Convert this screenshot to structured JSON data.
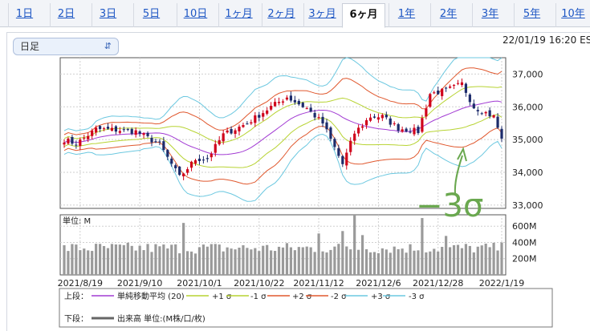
{
  "tabs": [
    {
      "label": "1日",
      "active": false
    },
    {
      "label": "2日",
      "active": false
    },
    {
      "label": "3日",
      "active": false
    },
    {
      "label": "5日",
      "active": false
    },
    {
      "label": "10日",
      "active": false
    },
    {
      "label": "1ヶ月",
      "active": false
    },
    {
      "label": "2ヶ月",
      "active": false
    },
    {
      "label": "3ヶ月",
      "active": false
    },
    {
      "label": "6ヶ月",
      "active": true
    },
    {
      "label": "1年",
      "active": false
    },
    {
      "label": "2年",
      "active": false
    },
    {
      "label": "3年",
      "active": false
    },
    {
      "label": "5年",
      "active": false
    },
    {
      "label": "10年",
      "active": false
    }
  ],
  "select": {
    "value": "日足",
    "icon": "updown-chevron-icon"
  },
  "timestamp": "22/01/19 16:20 ES",
  "annotation": {
    "text": "−3σ",
    "color": "#6aa84f",
    "arrow_icon": "curved-arrow-icon"
  },
  "colors": {
    "up": "#d0021b",
    "down": "#1c2b6b",
    "sma": "#a23bd3",
    "s1": "#b7d332",
    "s2": "#e0582e",
    "s3": "#6cc8e0",
    "volume": "#9a9a9a"
  },
  "chart_data": [
    {
      "type": "candlestick",
      "ylim": [
        32900,
        37500
      ],
      "y_ticks": [
        {
          "value": 33000,
          "label": "33,000"
        },
        {
          "value": 34000,
          "label": "34,000"
        },
        {
          "value": 35000,
          "label": "35,000"
        },
        {
          "value": 36000,
          "label": "36,000"
        },
        {
          "value": 37000,
          "label": "37,000"
        }
      ],
      "x_ticks": [
        "2021/8/19",
        "2021/9/10",
        "2021/10/1",
        "2021/10/22",
        "2021/11/12",
        "2021/12/6",
        "2021/12/28",
        "2022/1/19"
      ],
      "x_tick_index": [
        4,
        19,
        34,
        49,
        64,
        79,
        94,
        110
      ],
      "close_anchors": [
        [
          0,
          35000
        ],
        [
          3,
          34870
        ],
        [
          8,
          35320
        ],
        [
          12,
          35300
        ],
        [
          18,
          35250
        ],
        [
          24,
          34850
        ],
        [
          29,
          33850
        ],
        [
          33,
          34400
        ],
        [
          36,
          34420
        ],
        [
          40,
          35150
        ],
        [
          46,
          35500
        ],
        [
          52,
          36000
        ],
        [
          56,
          36300
        ],
        [
          61,
          35950
        ],
        [
          65,
          35500
        ],
        [
          70,
          34250
        ],
        [
          73,
          35200
        ],
        [
          77,
          35700
        ],
        [
          80,
          35700
        ],
        [
          84,
          35350
        ],
        [
          89,
          35250
        ],
        [
          92,
          36400
        ],
        [
          96,
          36500
        ],
        [
          100,
          36700
        ],
        [
          103,
          36000
        ],
        [
          108,
          35700
        ],
        [
          110,
          35030
        ]
      ],
      "bollinger_period": 20,
      "n_bars": 111
    },
    {
      "type": "bar",
      "ylabel": "単位: M",
      "ylim": [
        0,
        740
      ],
      "y_ticks": [
        {
          "value": 200,
          "label": "200M"
        },
        {
          "value": 400,
          "label": "400M"
        },
        {
          "value": 600,
          "label": "600M"
        }
      ],
      "base_volume": 330,
      "spikes": [
        [
          30,
          640
        ],
        [
          64,
          510
        ],
        [
          70,
          540
        ],
        [
          73,
          740
        ],
        [
          75,
          490
        ],
        [
          90,
          700
        ],
        [
          96,
          480
        ]
      ],
      "n_bars": 111
    }
  ],
  "legend": {
    "upper_label": "上段：",
    "lower_label": "下段：",
    "items": [
      {
        "label": "単純移動平均 (20)",
        "color": "#a23bd3"
      },
      {
        "label": "+1 σ",
        "color": "#b7d332"
      },
      {
        "label": "-1 σ",
        "color": "#b7d332"
      },
      {
        "label": "+2 σ",
        "color": "#e0582e"
      },
      {
        "label": "-2 σ",
        "color": "#e0582e"
      },
      {
        "label": "+3 σ",
        "color": "#6cc8e0"
      },
      {
        "label": "-3 σ",
        "color": "#6cc8e0"
      }
    ],
    "volume_item": {
      "label": "出来高 単位:(M株/口/枚)",
      "color": "#666666"
    }
  }
}
